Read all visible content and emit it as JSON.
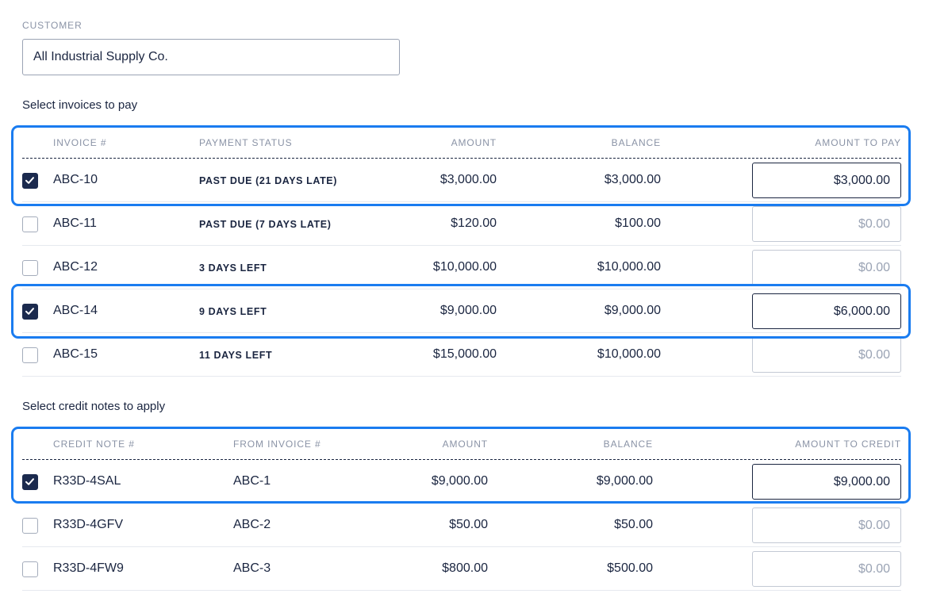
{
  "customer": {
    "label": "CUSTOMER",
    "value": "All Industrial Supply Co."
  },
  "invoices": {
    "title": "Select invoices to pay",
    "headers": {
      "invoice": "INVOICE #",
      "status": "PAYMENT STATUS",
      "amount": "AMOUNT",
      "balance": "BALANCE",
      "to_pay": "AMOUNT TO PAY"
    },
    "rows": [
      {
        "checked": true,
        "invoice": "ABC-10",
        "status": "PAST DUE (21 DAYS LATE)",
        "amount": "$3,000.00",
        "balance": "$3,000.00",
        "to_pay": "$3,000.00",
        "placeholder": "$0.00"
      },
      {
        "checked": false,
        "invoice": "ABC-11",
        "status": "PAST DUE (7 DAYS LATE)",
        "amount": "$120.00",
        "balance": "$100.00",
        "to_pay": "",
        "placeholder": "$0.00"
      },
      {
        "checked": false,
        "invoice": "ABC-12",
        "status": "3 DAYS LEFT",
        "amount": "$10,000.00",
        "balance": "$10,000.00",
        "to_pay": "",
        "placeholder": "$0.00"
      },
      {
        "checked": true,
        "invoice": "ABC-14",
        "status": "9 DAYS LEFT",
        "amount": "$9,000.00",
        "balance": "$9,000.00",
        "to_pay": "$6,000.00",
        "placeholder": "$0.00"
      },
      {
        "checked": false,
        "invoice": "ABC-15",
        "status": "11 DAYS LEFT",
        "amount": "$15,000.00",
        "balance": "$10,000.00",
        "to_pay": "",
        "placeholder": "$0.00"
      }
    ]
  },
  "credits": {
    "title": "Select credit notes to apply",
    "headers": {
      "credit_note": "CREDIT NOTE #",
      "from_invoice": "FROM INVOICE #",
      "amount": "AMOUNT",
      "balance": "BALANCE",
      "to_credit": "AMOUNT TO CREDIT"
    },
    "rows": [
      {
        "checked": true,
        "credit_note": "R33D-4SAL",
        "from_invoice": "ABC-1",
        "amount": "$9,000.00",
        "balance": "$9,000.00",
        "to_credit": "$9,000.00",
        "placeholder": "$0.00"
      },
      {
        "checked": false,
        "credit_note": "R33D-4GFV",
        "from_invoice": "ABC-2",
        "amount": "$50.00",
        "balance": "$50.00",
        "to_credit": "",
        "placeholder": "$0.00"
      },
      {
        "checked": false,
        "credit_note": "R33D-4FW9",
        "from_invoice": "ABC-3",
        "amount": "$800.00",
        "balance": "$500.00",
        "to_credit": "",
        "placeholder": "$0.00"
      }
    ]
  },
  "colors": {
    "highlight": "#1a7cf0",
    "checkbox_checked": "#1b2a4e",
    "text": "#1a2540",
    "muted": "#8a93a6"
  }
}
